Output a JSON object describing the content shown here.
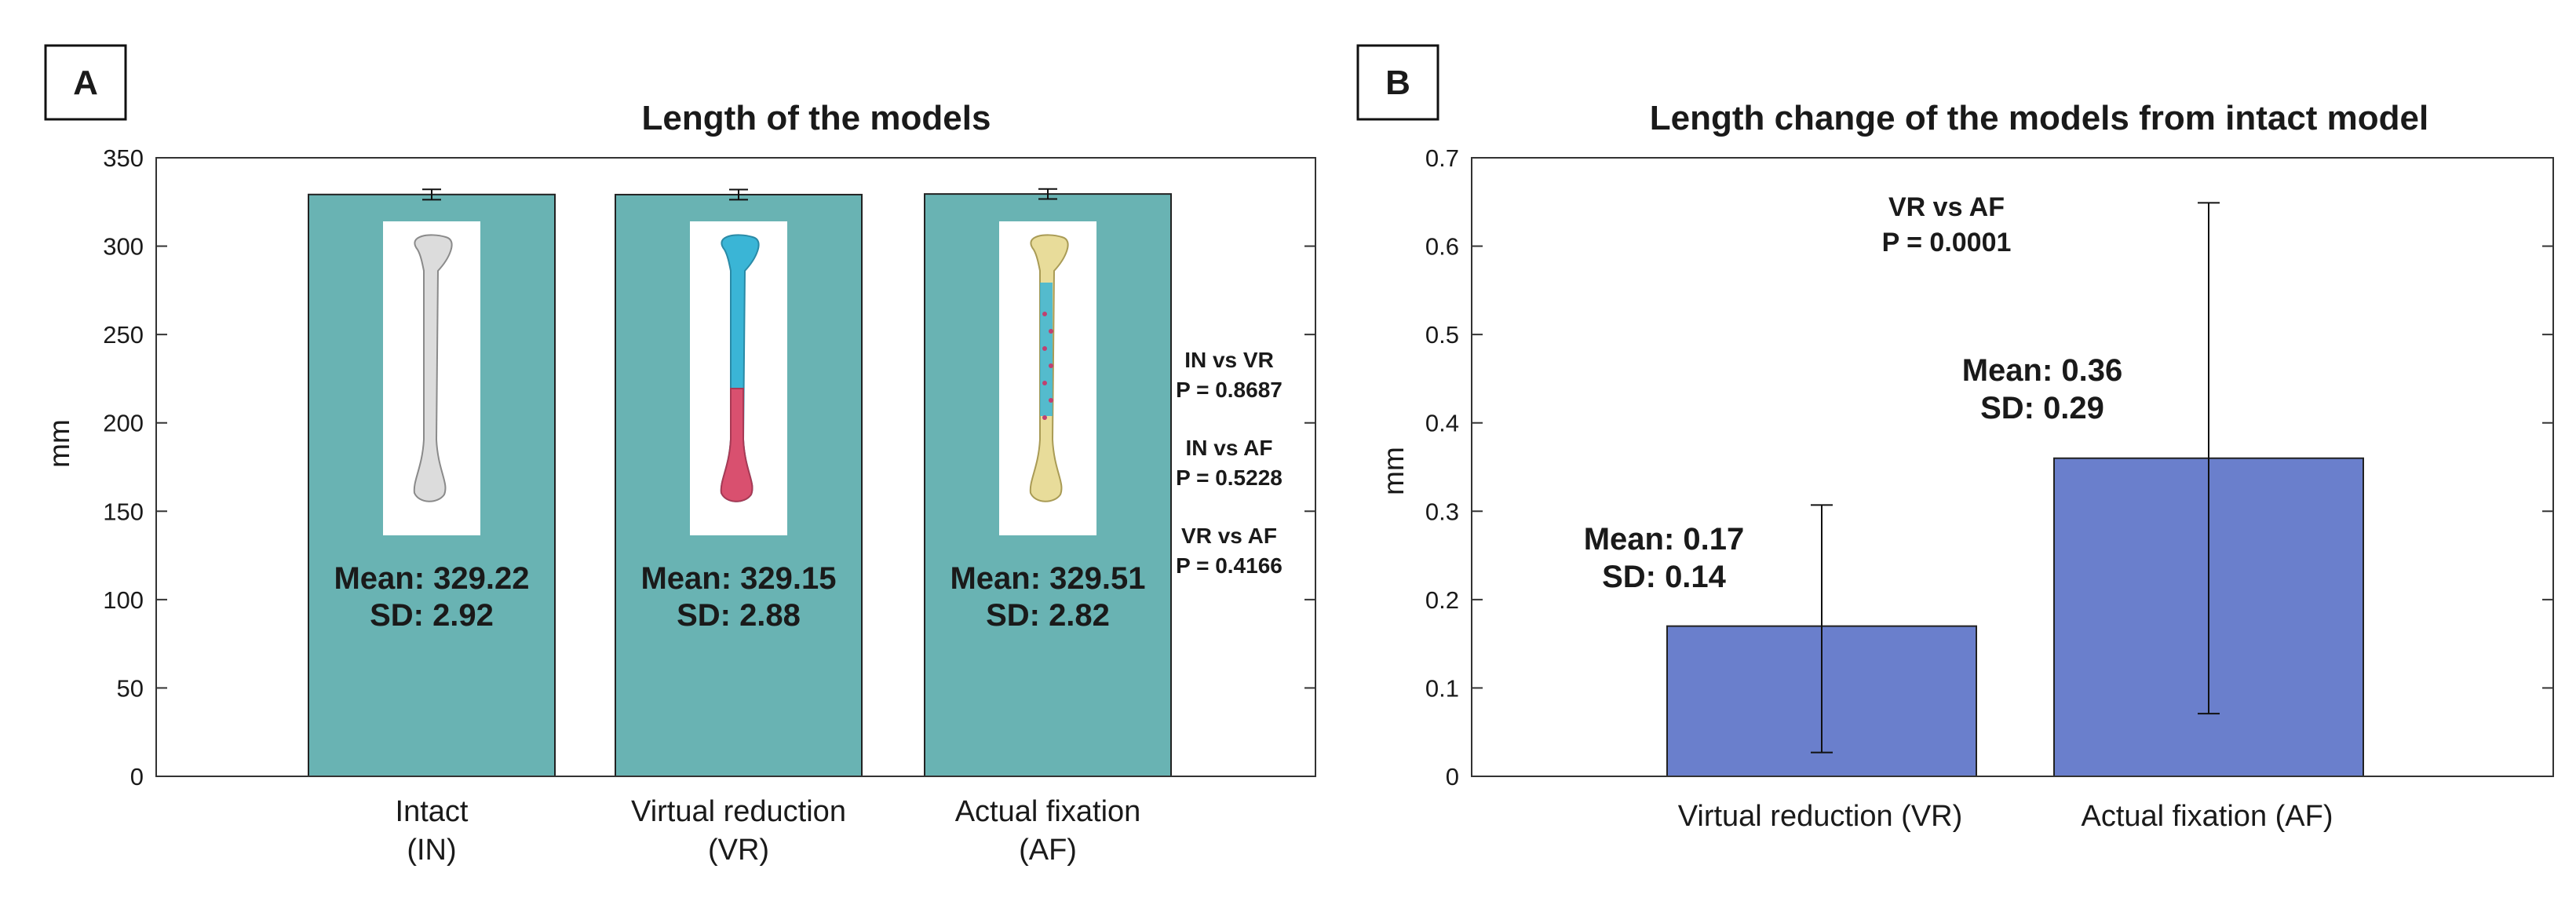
{
  "chart_data": [
    {
      "panel": "A",
      "type": "bar",
      "title": "Length of the models",
      "xlabel": "",
      "ylabel": "mm",
      "ylim": [
        0,
        350
      ],
      "yticks": [
        0,
        50,
        100,
        150,
        200,
        250,
        300,
        350
      ],
      "bar_color": "#69b3b3",
      "categories": [
        {
          "line1": "Intact",
          "line2": "(IN)"
        },
        {
          "line1": "Virtual reduction",
          "line2": "(VR)"
        },
        {
          "line1": "Actual fixation",
          "line2": "(AF)"
        }
      ],
      "values": [
        329.22,
        329.15,
        329.51
      ],
      "sd": [
        2.92,
        2.88,
        2.82
      ],
      "labels": [
        {
          "mean": "Mean: 329.22",
          "sd": "SD: 2.92"
        },
        {
          "mean": "Mean: 329.15",
          "sd": "SD: 2.88"
        },
        {
          "mean": "Mean: 329.51",
          "sd": "SD: 2.82"
        }
      ],
      "error_bar_halfwidth": [
        2.92,
        2.88,
        2.82
      ],
      "comparisons": [
        {
          "name": "IN vs VR",
          "p": "P = 0.8687"
        },
        {
          "name": "IN vs AF",
          "p": "P = 0.5228"
        },
        {
          "name": "VR vs AF",
          "p": "P = 0.4166"
        }
      ],
      "image_insets": [
        "bone-intact",
        "bone-virtual-reduction",
        "bone-actual-fixation"
      ]
    },
    {
      "panel": "B",
      "type": "bar",
      "title": "Length change of the models from intact model",
      "xlabel": "",
      "ylabel": "mm",
      "ylim": [
        0,
        0.7
      ],
      "yticks": [
        0,
        0.1,
        0.2,
        0.3,
        0.4,
        0.5,
        0.6,
        0.7
      ],
      "bar_color": "#6a7fcc",
      "categories": [
        "Virtual reduction (VR)",
        "Actual fixation (AF)"
      ],
      "values": [
        0.17,
        0.36
      ],
      "sd": [
        0.14,
        0.29
      ],
      "error_low": [
        0.027,
        0.071
      ],
      "error_high": [
        0.307,
        0.649
      ],
      "labels": [
        {
          "mean": "Mean: 0.17",
          "sd": "SD: 0.14"
        },
        {
          "mean": "Mean: 0.36",
          "sd": "SD: 0.29"
        }
      ],
      "comparison": {
        "name": "VR vs AF",
        "p": "P = 0.0001"
      }
    }
  ]
}
